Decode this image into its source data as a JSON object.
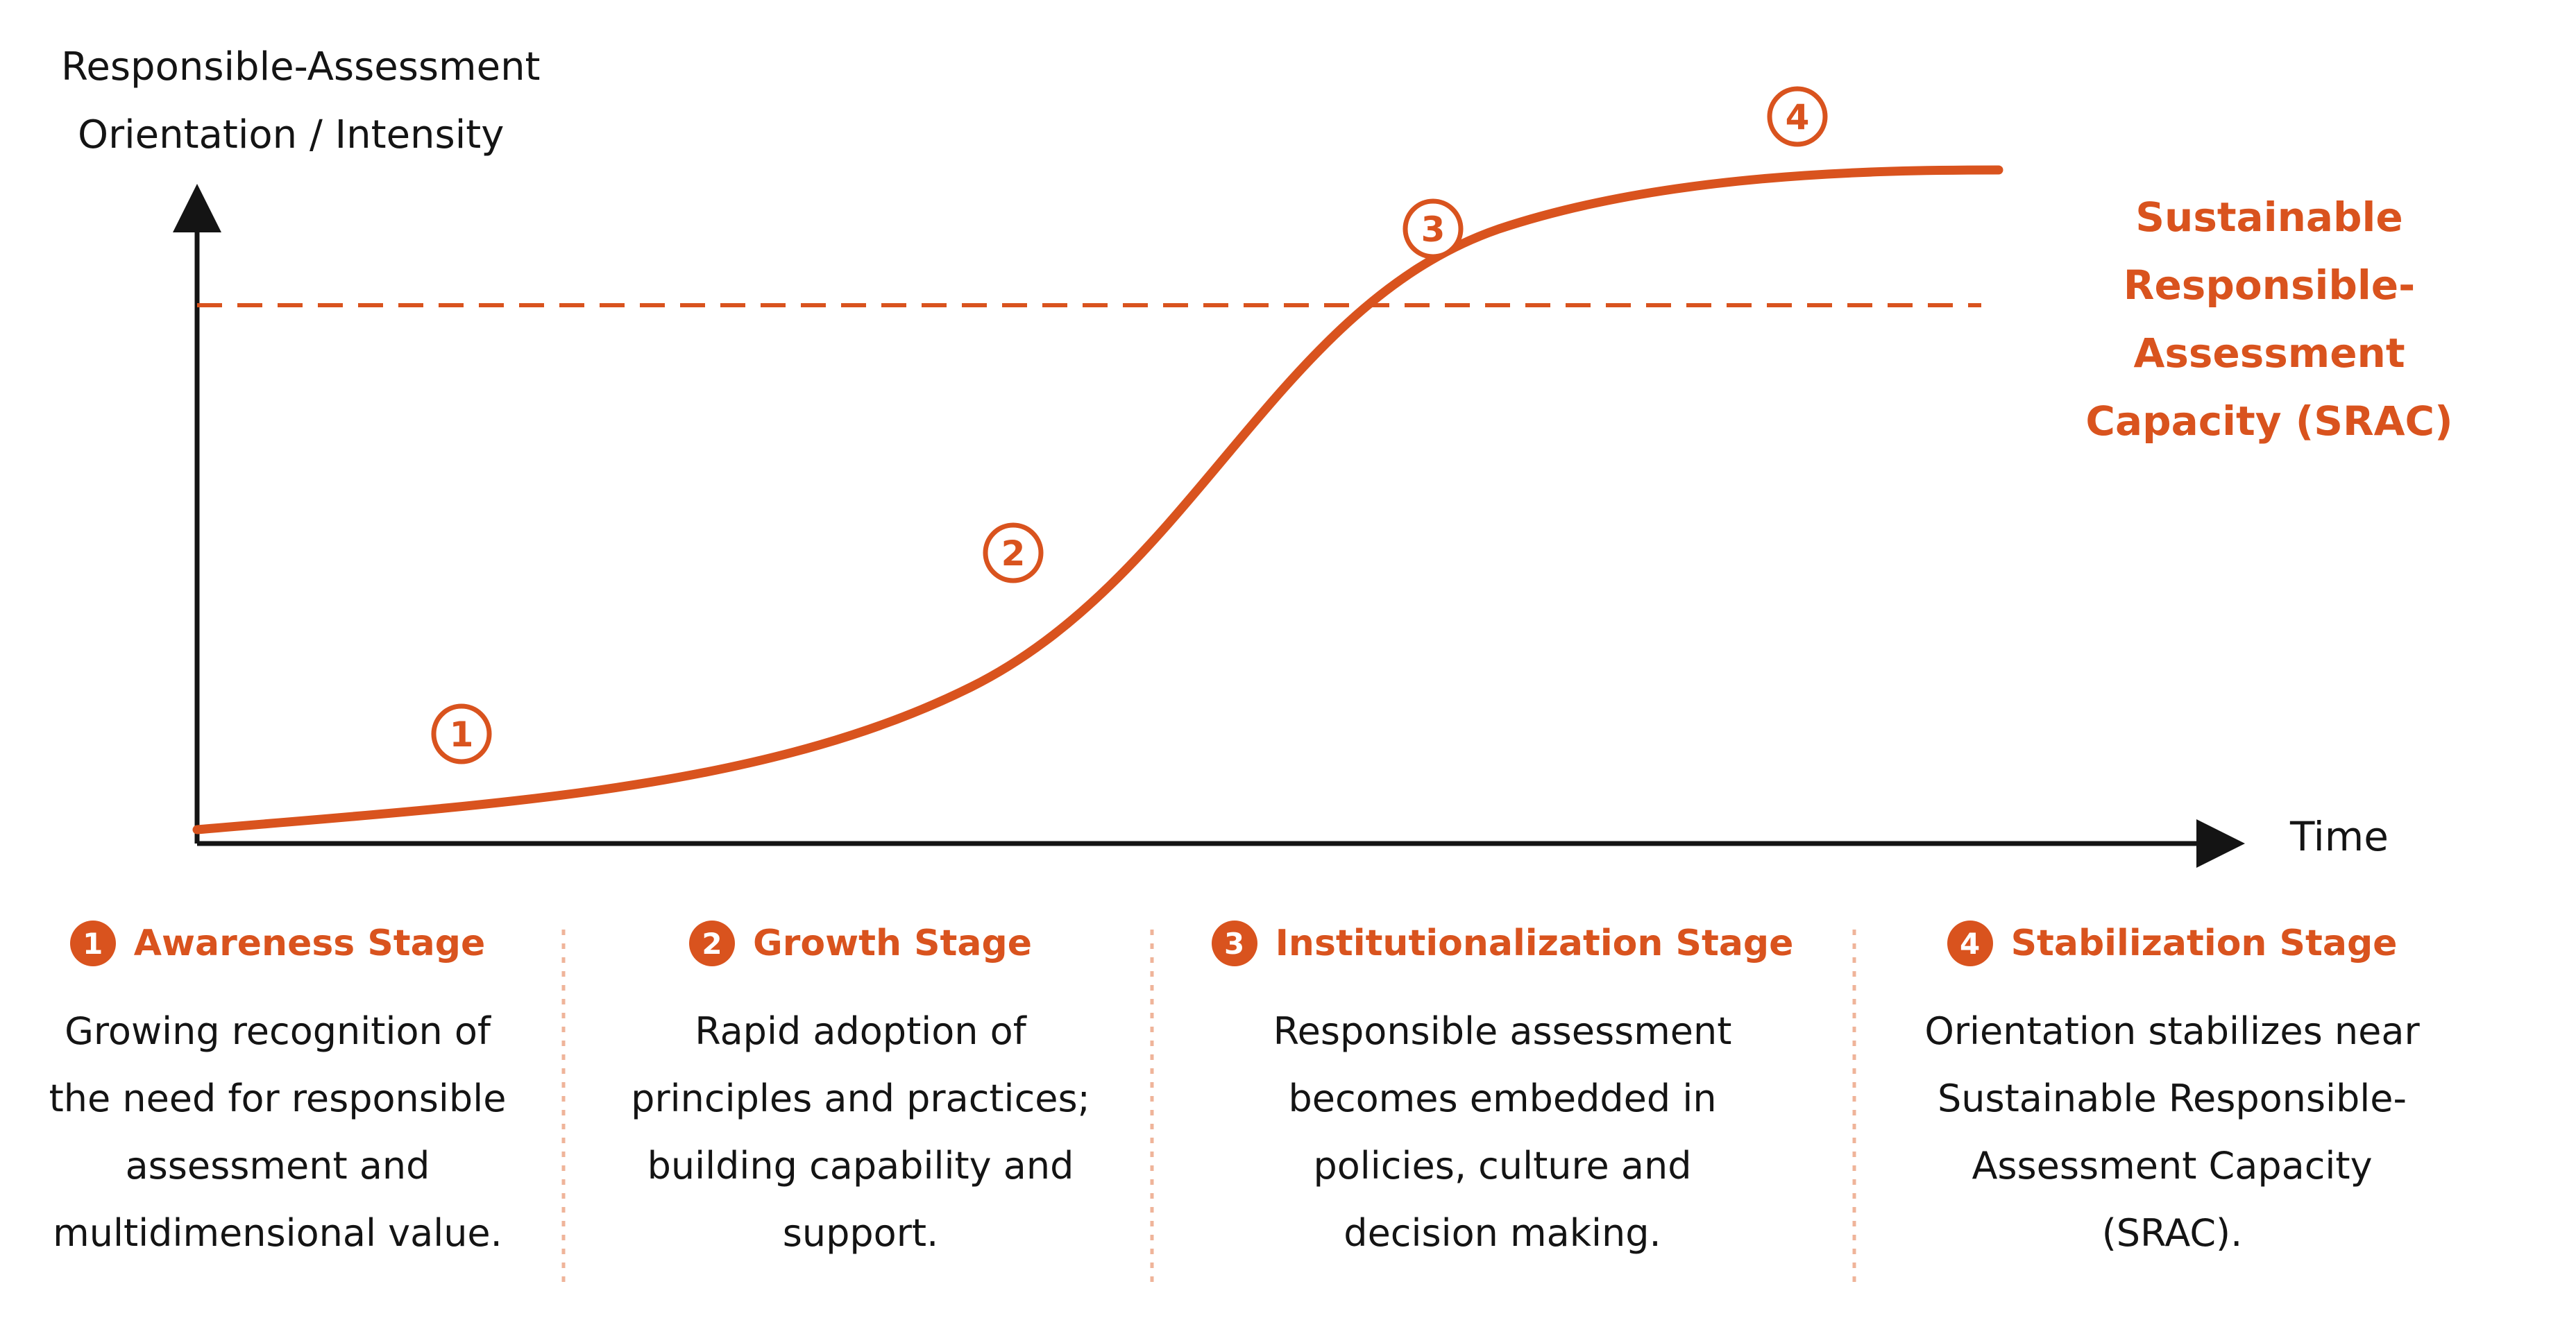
{
  "axes": {
    "y_label_lines": [
      "Responsible-Assessment",
      "Orientation / Intensity"
    ],
    "x_label": "Time"
  },
  "threshold": {
    "label_lines": [
      "Sustainable",
      "Responsible-Assessment",
      "Capacity (SRAC)"
    ]
  },
  "curve_markers": [
    "1",
    "2",
    "3",
    "4"
  ],
  "stages": [
    {
      "number": "1",
      "title": "Awareness Stage",
      "desc_lines": [
        "Growing recognition of",
        "the need for responsible",
        "assessment and",
        "multidimensional value."
      ]
    },
    {
      "number": "2",
      "title": "Growth Stage",
      "desc_lines": [
        "Rapid adoption of",
        "principles and practices;",
        "building capability and",
        "support."
      ]
    },
    {
      "number": "3",
      "title": "Institutionalization Stage",
      "desc_lines": [
        "Responsible assessment",
        "becomes embedded in",
        "policies, culture and",
        "decision making."
      ]
    },
    {
      "number": "4",
      "title": "Stabilization Stage",
      "desc_lines": [
        "Orientation stabilizes near",
        "Sustainable Responsible-",
        "Assessment Capacity",
        "(SRAC)."
      ]
    }
  ],
  "colors": {
    "accent": "#d9531e",
    "text": "#141414",
    "divider": "#efb49a"
  }
}
